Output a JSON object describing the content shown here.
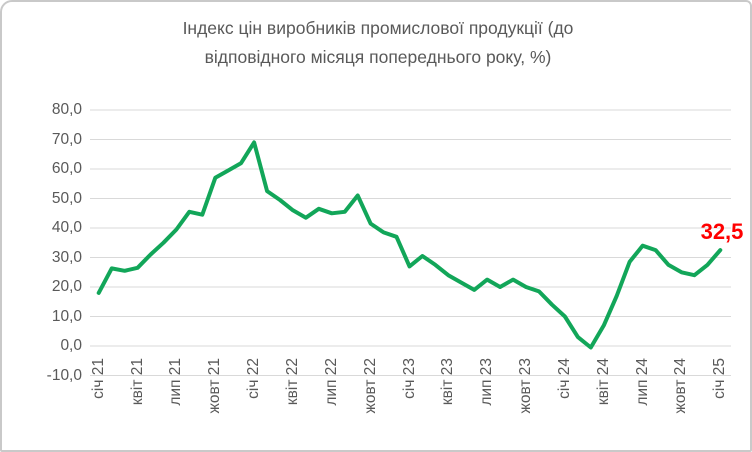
{
  "window": {
    "border_color": "#c9c9c9",
    "background": "#ffffff"
  },
  "chart": {
    "title_line1": "Індекс цін виробників промислової продукції (до",
    "title_line2": "відповідного місяця попереднього року, %)",
    "title_color": "#595959",
    "axis_label_color": "#595959",
    "gridline_color": "#d9d9d9",
    "line_color": "#12a659"
  },
  "chart_data": {
    "type": "line",
    "title": "Індекс цін виробників промислової продукції (до відповідного місяця попереднього року, %)",
    "xlabel": "",
    "ylabel": "",
    "frequency": "monthly",
    "x_start": "січ 21",
    "x_end": "січ 25",
    "x_tick_labels": [
      "січ 21",
      "квіт 21",
      "лип 21",
      "жовт 21",
      "січ 22",
      "квіт 22",
      "лип 22",
      "жовт 22",
      "січ 23",
      "квіт 23",
      "лип 23",
      "жовт 23",
      "січ 24",
      "квіт 24",
      "лип 24",
      "жовт 24",
      "січ 25"
    ],
    "x_tick_every": 3,
    "y_tick_labels": [
      "80,0",
      "70,0",
      "60,0",
      "50,0",
      "40,0",
      "30,0",
      "20,0",
      "10,0",
      "0,0",
      "-10,0"
    ],
    "y_tick_values": [
      80,
      70,
      60,
      50,
      40,
      30,
      20,
      10,
      0,
      -10
    ],
    "ylim": [
      -10,
      80
    ],
    "grid": "horizontal",
    "legend": "none",
    "series": [
      {
        "name": "Індекс цін виробників промислової продукції, % до відповідного місяця попереднього року",
        "values": [
          18,
          26.3,
          25.5,
          26.5,
          31,
          35,
          39.5,
          45.5,
          44.5,
          57,
          59.5,
          62,
          69,
          52.5,
          49.5,
          46,
          43.5,
          46.5,
          45,
          45.5,
          51,
          41.5,
          38.5,
          37,
          27,
          30.5,
          27.5,
          24,
          21.5,
          19,
          22.5,
          20,
          22.5,
          20,
          18.5,
          14,
          10,
          3,
          -0.5,
          7,
          17,
          28.5,
          34,
          32.5,
          27.5,
          25,
          24,
          27.5,
          32.5
        ]
      }
    ],
    "annotation": {
      "text": "32,5",
      "applies_to": "січ 25",
      "value": 32.5,
      "color": "#ff0000"
    }
  }
}
